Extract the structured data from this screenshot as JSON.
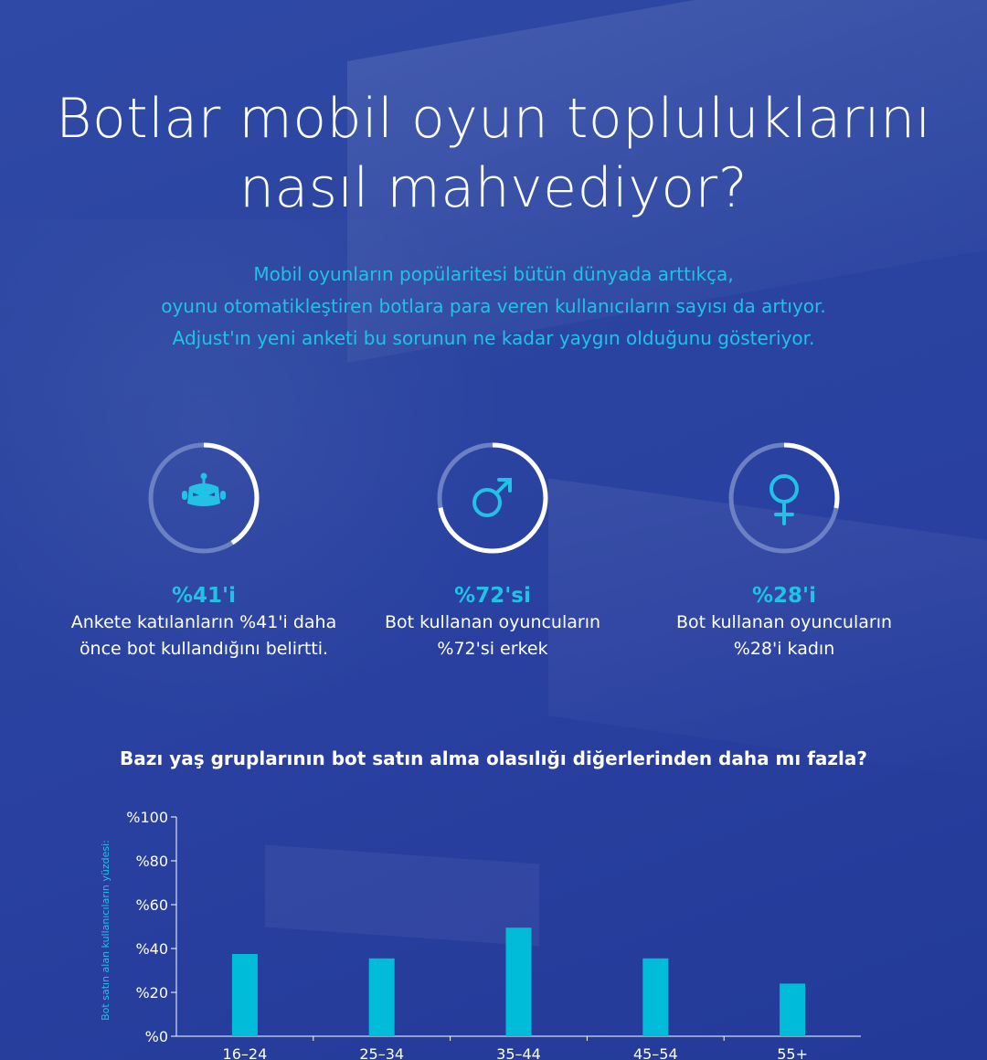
{
  "title": {
    "line1": "Botlar mobil oyun topluluklarını",
    "line2": "nasıl mahvediyor?"
  },
  "intro": {
    "line1": "Mobil oyunların popülaritesi bütün dünyada arttıkça,",
    "line2": "oyunu otomatikleştiren botlara para veren kullanıcıların sayısı da artıyor.",
    "line3": "Adjust'ın yeni anketi bu sorunun ne kadar yaygın olduğunu gösteriyor."
  },
  "stats": [
    {
      "icon": "robot-icon",
      "percent": 41,
      "value": "%41'i",
      "desc_line1": "Ankete katılanların %41'i daha",
      "desc_line2": "önce bot kullandığını belirtti."
    },
    {
      "icon": "male-symbol-icon",
      "percent": 72,
      "value": "%72'si",
      "desc_line1": "Bot kullanan oyuncuların",
      "desc_line2": "%72'si erkek"
    },
    {
      "icon": "female-symbol-icon",
      "percent": 28,
      "value": "%28'i",
      "desc_line1": "Bot kullanan oyuncuların",
      "desc_line2": "%28'i kadın"
    }
  ],
  "colors": {
    "background": "#2b45a3",
    "accent": "#21c2e6",
    "bar": "#00bcd8",
    "ring_track": "#6c80c4",
    "ring_fill": "#ffffff"
  },
  "chart_data": {
    "type": "bar",
    "title": "Bazı yaş gruplarının bot satın alma olasılığı diğerlerinden daha mı fazla?",
    "categories": [
      "16–24",
      "25–34",
      "35–44",
      "45–54",
      "55+"
    ],
    "values": [
      37.5,
      35.5,
      49.5,
      35.5,
      24
    ],
    "ylabel": "Bot satın alan kullanıcıların yüzdesi:",
    "xlabel": "",
    "ylim": [
      0,
      100
    ],
    "yticks": [
      "%0",
      "%20",
      "%40",
      "%60",
      "%80",
      "%100"
    ],
    "ytick_values": [
      0,
      20,
      40,
      60,
      80,
      100
    ],
    "grid": false
  }
}
